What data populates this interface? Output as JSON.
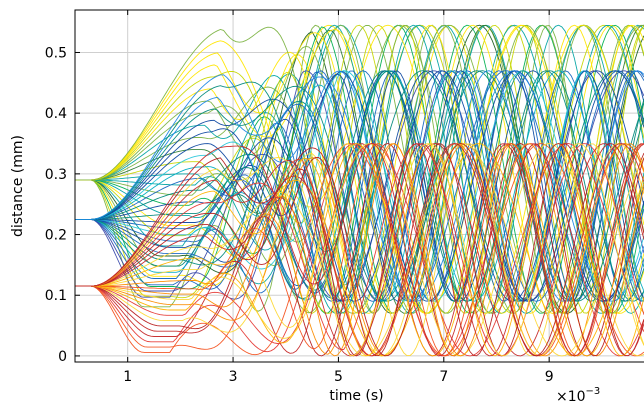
{
  "chart_data": {
    "type": "line",
    "title": "",
    "xlabel": "time (s)",
    "ylabel": "distance (mm)",
    "x_scale_label": "×10",
    "x_scale_exponent": "−3",
    "xlim": [
      0,
      10.8
    ],
    "ylim": [
      -0.01,
      0.57
    ],
    "x_ticks": [
      1,
      3,
      5,
      7,
      9
    ],
    "x_tick_labels": [
      "1",
      "3",
      "5",
      "7",
      "9"
    ],
    "y_ticks": [
      0,
      0.1,
      0.2,
      0.3,
      0.4,
      0.5
    ],
    "y_tick_labels": [
      "0",
      "0.1",
      "0.2",
      "0.3",
      "0.4",
      "0.5"
    ],
    "grid": true,
    "legend": "none",
    "groups": [
      {
        "start": 0.29,
        "min": 0.07,
        "max": 0.545,
        "colormap": [
          "#1b5e20",
          "#2e7d32",
          "#7cb342",
          "#c6d600",
          "#ffe600",
          "#00b050",
          "#00a3a3"
        ],
        "curves": 26
      },
      {
        "start": 0.225,
        "min": 0.09,
        "max": 0.47,
        "colormap": [
          "#0d47a1",
          "#1565c0",
          "#1e88e5",
          "#00acc1",
          "#26c6da",
          "#3949ab",
          "#00897b"
        ],
        "curves": 26
      },
      {
        "start": 0.115,
        "min": 0.0,
        "max": 0.35,
        "colormap": [
          "#b71c1c",
          "#e53935",
          "#f4511e",
          "#fb8c00",
          "#ffb300",
          "#fdd835",
          "#c62828"
        ],
        "curves": 26
      }
    ]
  }
}
